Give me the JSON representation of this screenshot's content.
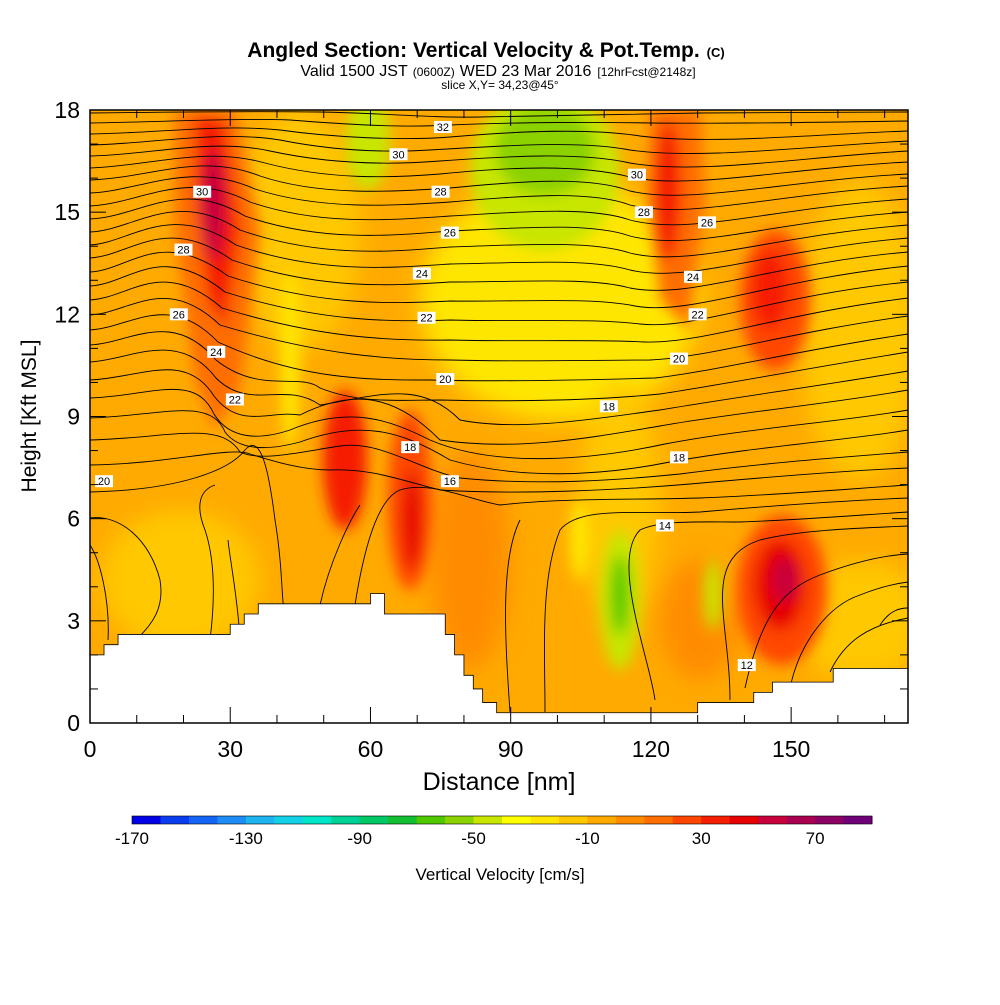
{
  "title": {
    "main": "Angled Section: Vertical Velocity & Pot.Temp.",
    "main_units": "(C)",
    "valid_prefix": "Valid 1500 JST",
    "valid_utc": "(0600Z)",
    "valid_date": "WED 23 Mar 2016",
    "valid_fcst": "[12hrFcst@2148z]",
    "slice": "slice X,Y= 34,23@45°"
  },
  "chart_data": {
    "type": "heatmap",
    "xlabel": "Distance [nm]",
    "ylabel": "Height [Kft MSL]",
    "xlim": [
      0,
      175
    ],
    "ylim": [
      0,
      18
    ],
    "x_ticks": [
      0,
      30,
      60,
      90,
      120,
      150
    ],
    "y_ticks": [
      0,
      3,
      6,
      9,
      12,
      15,
      18
    ],
    "grid": false,
    "colorbar": {
      "label": "Vertical Velocity [cm/s]",
      "placement": "bottom",
      "tick_labels": [
        "-170",
        "-130",
        "-90",
        "-50",
        "-10",
        "30",
        "70"
      ],
      "tick_values": [
        -170,
        -130,
        -90,
        -50,
        -10,
        30,
        70
      ],
      "range": [
        -170,
        90
      ],
      "step": 10,
      "colors": [
        "#0000e6",
        "#0a3cf0",
        "#1464f5",
        "#1e8cf5",
        "#1eb4f0",
        "#14d2e6",
        "#00e6c8",
        "#00d296",
        "#00c864",
        "#14be32",
        "#50c800",
        "#8cd200",
        "#c8e600",
        "#ffff00",
        "#ffe600",
        "#ffc800",
        "#ffaa00",
        "#ff8c00",
        "#ff6e00",
        "#ff4600",
        "#f51e00",
        "#e60000",
        "#c8003c",
        "#aa0050",
        "#8c0064",
        "#6e0078"
      ]
    },
    "background_level": "orange",
    "features": [
      {
        "kind": "updraft",
        "x": [
          18,
          33
        ],
        "y": [
          8,
          18
        ],
        "level": "red"
      },
      {
        "kind": "updraft",
        "x": [
          53,
          57
        ],
        "y": [
          5,
          9
        ],
        "level": "red"
      },
      {
        "kind": "updraft",
        "x": [
          64,
          70
        ],
        "y": [
          4,
          8
        ],
        "level": "red"
      },
      {
        "kind": "updraft",
        "x": [
          120,
          126
        ],
        "y": [
          11,
          18
        ],
        "level": "red"
      },
      {
        "kind": "updraft",
        "x": [
          137,
          157
        ],
        "y": [
          2,
          6
        ],
        "level": "dark-red"
      },
      {
        "kind": "updraft",
        "x": [
          142,
          158
        ],
        "y": [
          10,
          14
        ],
        "level": "red"
      },
      {
        "kind": "downdraft",
        "x": [
          55,
          62
        ],
        "y": [
          15,
          18
        ],
        "level": "green"
      },
      {
        "kind": "downdraft",
        "x": [
          84,
          108
        ],
        "y": [
          14,
          18
        ],
        "level": "green"
      },
      {
        "kind": "downdraft",
        "x": [
          108,
          118
        ],
        "y": [
          1.5,
          5.5
        ],
        "level": "green"
      },
      {
        "kind": "downdraft",
        "x": [
          131,
          136
        ],
        "y": [
          2.5,
          5
        ],
        "level": "yellow-green"
      }
    ],
    "terrain": {
      "x": [
        0,
        3,
        3,
        6,
        6,
        30,
        30,
        33,
        33,
        36,
        36,
        60,
        60,
        63,
        63,
        76,
        76,
        78,
        78,
        80,
        80,
        82,
        82,
        84,
        84,
        87,
        87,
        90,
        90,
        130,
        130,
        142,
        142,
        146,
        146,
        152,
        152,
        159,
        159,
        175
      ],
      "y": [
        2,
        2,
        2.3,
        2.3,
        2.6,
        2.6,
        2.9,
        2.9,
        3.2,
        3.2,
        3.5,
        3.5,
        3.8,
        3.8,
        3.2,
        3.2,
        2.6,
        2.6,
        2.0,
        2.0,
        1.4,
        1.4,
        1.0,
        1.0,
        0.6,
        0.6,
        0.3,
        0.3,
        0.3,
        0.3,
        0.6,
        0.6,
        0.9,
        0.9,
        1.2,
        1.2,
        1.2,
        1.2,
        1.6,
        1.6
      ]
    },
    "theta_labels": [
      {
        "value": "32",
        "x": 75.5,
        "y": 17.5
      },
      {
        "value": "30",
        "x": 66,
        "y": 16.7
      },
      {
        "value": "30",
        "x": 24,
        "y": 15.6
      },
      {
        "value": "30",
        "x": 117,
        "y": 16.1
      },
      {
        "value": "28",
        "x": 75,
        "y": 15.6
      },
      {
        "value": "28",
        "x": 118.5,
        "y": 15
      },
      {
        "value": "28",
        "x": 20,
        "y": 13.9
      },
      {
        "value": "26",
        "x": 77,
        "y": 14.4
      },
      {
        "value": "26",
        "x": 132,
        "y": 14.7
      },
      {
        "value": "26",
        "x": 19,
        "y": 12
      },
      {
        "value": "24",
        "x": 71,
        "y": 13.2
      },
      {
        "value": "24",
        "x": 129,
        "y": 13.1
      },
      {
        "value": "24",
        "x": 27,
        "y": 10.9
      },
      {
        "value": "22",
        "x": 72,
        "y": 11.9
      },
      {
        "value": "22",
        "x": 130,
        "y": 12
      },
      {
        "value": "22",
        "x": 31,
        "y": 9.5
      },
      {
        "value": "20",
        "x": 76,
        "y": 10.1
      },
      {
        "value": "20",
        "x": 126,
        "y": 10.7
      },
      {
        "value": "20",
        "x": 3,
        "y": 7.1
      },
      {
        "value": "18",
        "x": 111,
        "y": 9.3
      },
      {
        "value": "18",
        "x": 68.5,
        "y": 8.1
      },
      {
        "value": "18",
        "x": 126,
        "y": 7.8
      },
      {
        "value": "16",
        "x": 77,
        "y": 7.1
      },
      {
        "value": "14",
        "x": 123,
        "y": 5.8
      },
      {
        "value": "12",
        "x": 140.5,
        "y": 1.7
      }
    ]
  }
}
